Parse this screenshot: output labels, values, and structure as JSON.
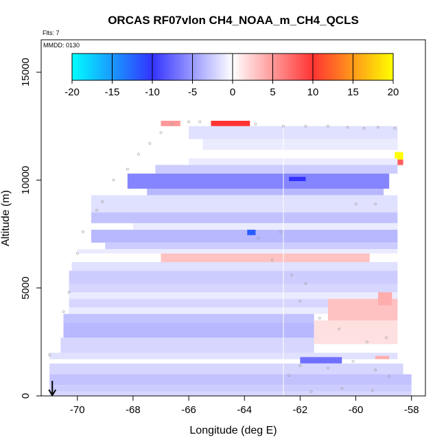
{
  "chart_data": {
    "type": "heatmap",
    "title": "ORCAS RF07vlon CH4_NOAA_m_CH4_QCLS",
    "annotations": [
      "Flts: 7",
      "MMDD: 0130"
    ],
    "xlabel": "Longitude (deg E)",
    "ylabel": "Altitude (m)",
    "xlim": [
      -71.3,
      -57.5
    ],
    "ylim": [
      0,
      16500
    ],
    "x_ticks": [
      -70,
      -68,
      -66,
      -64,
      -62,
      -60,
      -58
    ],
    "y_ticks": [
      0,
      5000,
      10000,
      15000
    ],
    "grid": false,
    "colorbar": {
      "ticks": [
        -20,
        -15,
        -10,
        -5,
        0,
        5,
        10,
        15,
        20
      ],
      "range": [
        -20,
        20
      ],
      "colors": [
        "#00ffff",
        "#3333ff",
        "#ffffff",
        "#ff3333",
        "#ffff00"
      ],
      "placement": "top inside plot"
    },
    "vertical_reference_line_x": -62.6,
    "bands": [
      {
        "alt": [
          12500,
          12750
        ],
        "x": [
          -67.0,
          -66.3
        ],
        "value": 5
      },
      {
        "alt": [
          12500,
          12750
        ],
        "x": [
          -65.2,
          -63.8
        ],
        "value": 10
      },
      {
        "alt": [
          11900,
          12500
        ],
        "x": [
          -66.0,
          -58.5
        ],
        "value": -1.5
      },
      {
        "alt": [
          11400,
          11900
        ],
        "x": [
          -65.5,
          -58.5
        ],
        "value": -1
      },
      {
        "alt": [
          10950,
          11300
        ],
        "x": [
          -58.6,
          -58.3
        ],
        "value": 20
      },
      {
        "alt": [
          10700,
          10950
        ],
        "x": [
          -58.6,
          -58.3
        ],
        "value": 8
      },
      {
        "alt": [
          10700,
          11000
        ],
        "x": [
          -66.0,
          -58.5
        ],
        "value": -1
      },
      {
        "alt": [
          10300,
          10700
        ],
        "x": [
          -67.2,
          -58.5
        ],
        "value": -2.5
      },
      {
        "alt": [
          9600,
          10300
        ],
        "x": [
          -68.2,
          -58.8
        ],
        "value": -6
      },
      {
        "alt": [
          9300,
          9600
        ],
        "x": [
          -67.5,
          -59.0
        ],
        "value": -3.5
      },
      {
        "alt": [
          8500,
          9300
        ],
        "x": [
          -69.5,
          -58.5
        ],
        "value": -1.5
      },
      {
        "alt": [
          8000,
          8500
        ],
        "x": [
          -69.5,
          -58.5
        ],
        "value": -3
      },
      {
        "alt": [
          7700,
          8000
        ],
        "x": [
          -68.0,
          -58.5
        ],
        "value": -1
      },
      {
        "alt": [
          7100,
          7700
        ],
        "x": [
          -69.5,
          -58.5
        ],
        "value": -3.5
      },
      {
        "alt": [
          6800,
          7100
        ],
        "x": [
          -69.0,
          -58.5
        ],
        "value": -2.5
      },
      {
        "alt": [
          6600,
          6800
        ],
        "x": [
          -70.0,
          -58.5
        ],
        "value": -1
      },
      {
        "alt": [
          6200,
          6600
        ],
        "x": [
          -67.0,
          -59.5
        ],
        "value": 3
      },
      {
        "alt": [
          5800,
          6200
        ],
        "x": [
          -70.2,
          -58.5
        ],
        "value": -1.5
      },
      {
        "alt": [
          5200,
          5800
        ],
        "x": [
          -70.3,
          -58.5
        ],
        "value": -2.5
      },
      {
        "alt": [
          4800,
          5200
        ],
        "x": [
          -70.3,
          -58.5
        ],
        "value": -2
      },
      {
        "alt": [
          4500,
          4800
        ],
        "x": [
          -70.3,
          -58.5
        ],
        "value": -1
      },
      {
        "alt": [
          4100,
          4500
        ],
        "x": [
          -70.3,
          -58.5
        ],
        "value": -2
      },
      {
        "alt": [
          3800,
          4100
        ],
        "x": [
          -70.3,
          -58.5
        ],
        "value": -1
      },
      {
        "alt": [
          3400,
          3800
        ],
        "x": [
          -70.5,
          -61.5
        ],
        "value": -3
      },
      {
        "alt": [
          2700,
          3400
        ],
        "x": [
          -70.5,
          -61.5
        ],
        "value": -3.5
      },
      {
        "alt": [
          2000,
          2700
        ],
        "x": [
          -70.6,
          -61.5
        ],
        "value": -2
      },
      {
        "alt": [
          2400,
          3500
        ],
        "x": [
          -61.5,
          -58.5
        ],
        "value": 1.5
      },
      {
        "alt": [
          3500,
          4500
        ],
        "x": [
          -61.0,
          -58.5
        ],
        "value": 3
      },
      {
        "alt": [
          1700,
          2000
        ],
        "x": [
          -71.0,
          -58.5
        ],
        "value": -1.5
      },
      {
        "alt": [
          1500,
          1800
        ],
        "x": [
          -62.0,
          -60.5
        ],
        "value": -7
      },
      {
        "alt": [
          1000,
          1500
        ],
        "x": [
          -71.0,
          -58.3
        ],
        "value": -2
      },
      {
        "alt": [
          500,
          1000
        ],
        "x": [
          -71.0,
          -58.0
        ],
        "value": -3
      },
      {
        "alt": [
          200,
          500
        ],
        "x": [
          -71.0,
          -58.0
        ],
        "value": -2.5
      },
      {
        "alt": [
          0,
          200
        ],
        "x": [
          -71.0,
          -58.0
        ],
        "value": -2
      },
      {
        "alt": [
          7450,
          7700
        ],
        "x": [
          -63.9,
          -63.6
        ],
        "value": -12
      },
      {
        "alt": [
          9950,
          10150
        ],
        "x": [
          -62.4,
          -61.8
        ],
        "value": -10
      },
      {
        "alt": [
          4200,
          4800
        ],
        "x": [
          -59.2,
          -58.7
        ],
        "value": 4
      },
      {
        "alt": [
          1700,
          1850
        ],
        "x": [
          -59.3,
          -58.8
        ],
        "value": 4
      }
    ],
    "flight_track_points": [
      [
        -71.0,
        1900
      ],
      [
        -70.5,
        3900
      ],
      [
        -70.3,
        4800
      ],
      [
        -70.0,
        6600
      ],
      [
        -69.8,
        7600
      ],
      [
        -69.3,
        8600
      ],
      [
        -69.1,
        9000
      ],
      [
        -68.7,
        10000
      ],
      [
        -68.2,
        10500
      ],
      [
        -67.8,
        11200
      ],
      [
        -67.4,
        11700
      ],
      [
        -67.0,
        12200
      ],
      [
        -66.6,
        12600
      ],
      [
        -66.0,
        12700
      ],
      [
        -65.6,
        12700
      ],
      [
        -63.6,
        12600
      ],
      [
        -62.6,
        12500
      ],
      [
        -61.8,
        12500
      ],
      [
        -61.0,
        12500
      ],
      [
        -60.3,
        12450
      ],
      [
        -59.7,
        12400
      ],
      [
        -59.2,
        12450
      ],
      [
        -58.6,
        12400
      ],
      [
        -60.0,
        8900
      ],
      [
        -59.3,
        8900
      ],
      [
        -63.5,
        7300
      ],
      [
        -62.7,
        7600
      ],
      [
        -63.0,
        6300
      ],
      [
        -62.3,
        5600
      ],
      [
        -61.8,
        5200
      ],
      [
        -62.0,
        4400
      ],
      [
        -61.3,
        3600
      ],
      [
        -60.6,
        3100
      ],
      [
        -59.6,
        2500
      ],
      [
        -58.9,
        2700
      ],
      [
        -62.0,
        1400
      ],
      [
        -61.0,
        1300
      ],
      [
        -60.1,
        1600
      ],
      [
        -59.3,
        1200
      ],
      [
        -58.8,
        900
      ],
      [
        -60.5,
        350
      ],
      [
        -59.4,
        250
      ],
      [
        -61.6,
        200
      ],
      [
        -62.4,
        950
      ]
    ]
  }
}
